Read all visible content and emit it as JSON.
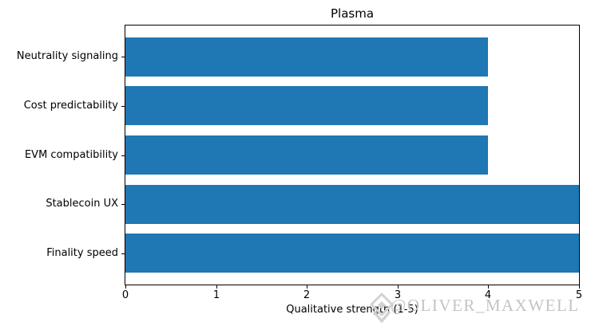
{
  "chart_data": {
    "type": "bar",
    "orientation": "horizontal",
    "title": "Plasma",
    "categories": [
      "Neutrality signaling",
      "Cost predictability",
      "EVM compatibility",
      "Stablecoin UX",
      "Finality speed"
    ],
    "values": [
      4,
      4,
      4,
      5,
      5
    ],
    "xlabel": "Qualitative strength (1-5)",
    "xlim": [
      0,
      5
    ],
    "x_ticks": [
      0,
      1,
      2,
      3,
      4,
      5
    ],
    "bar_color": "#1f77b4",
    "frame_color": "#000000",
    "background_color": "#ffffff",
    "grid": false,
    "legend": "none"
  },
  "watermark": {
    "icon": "gem-icon",
    "text": "@OLIVER_MAXWELL",
    "color": "#c4c4c4"
  }
}
